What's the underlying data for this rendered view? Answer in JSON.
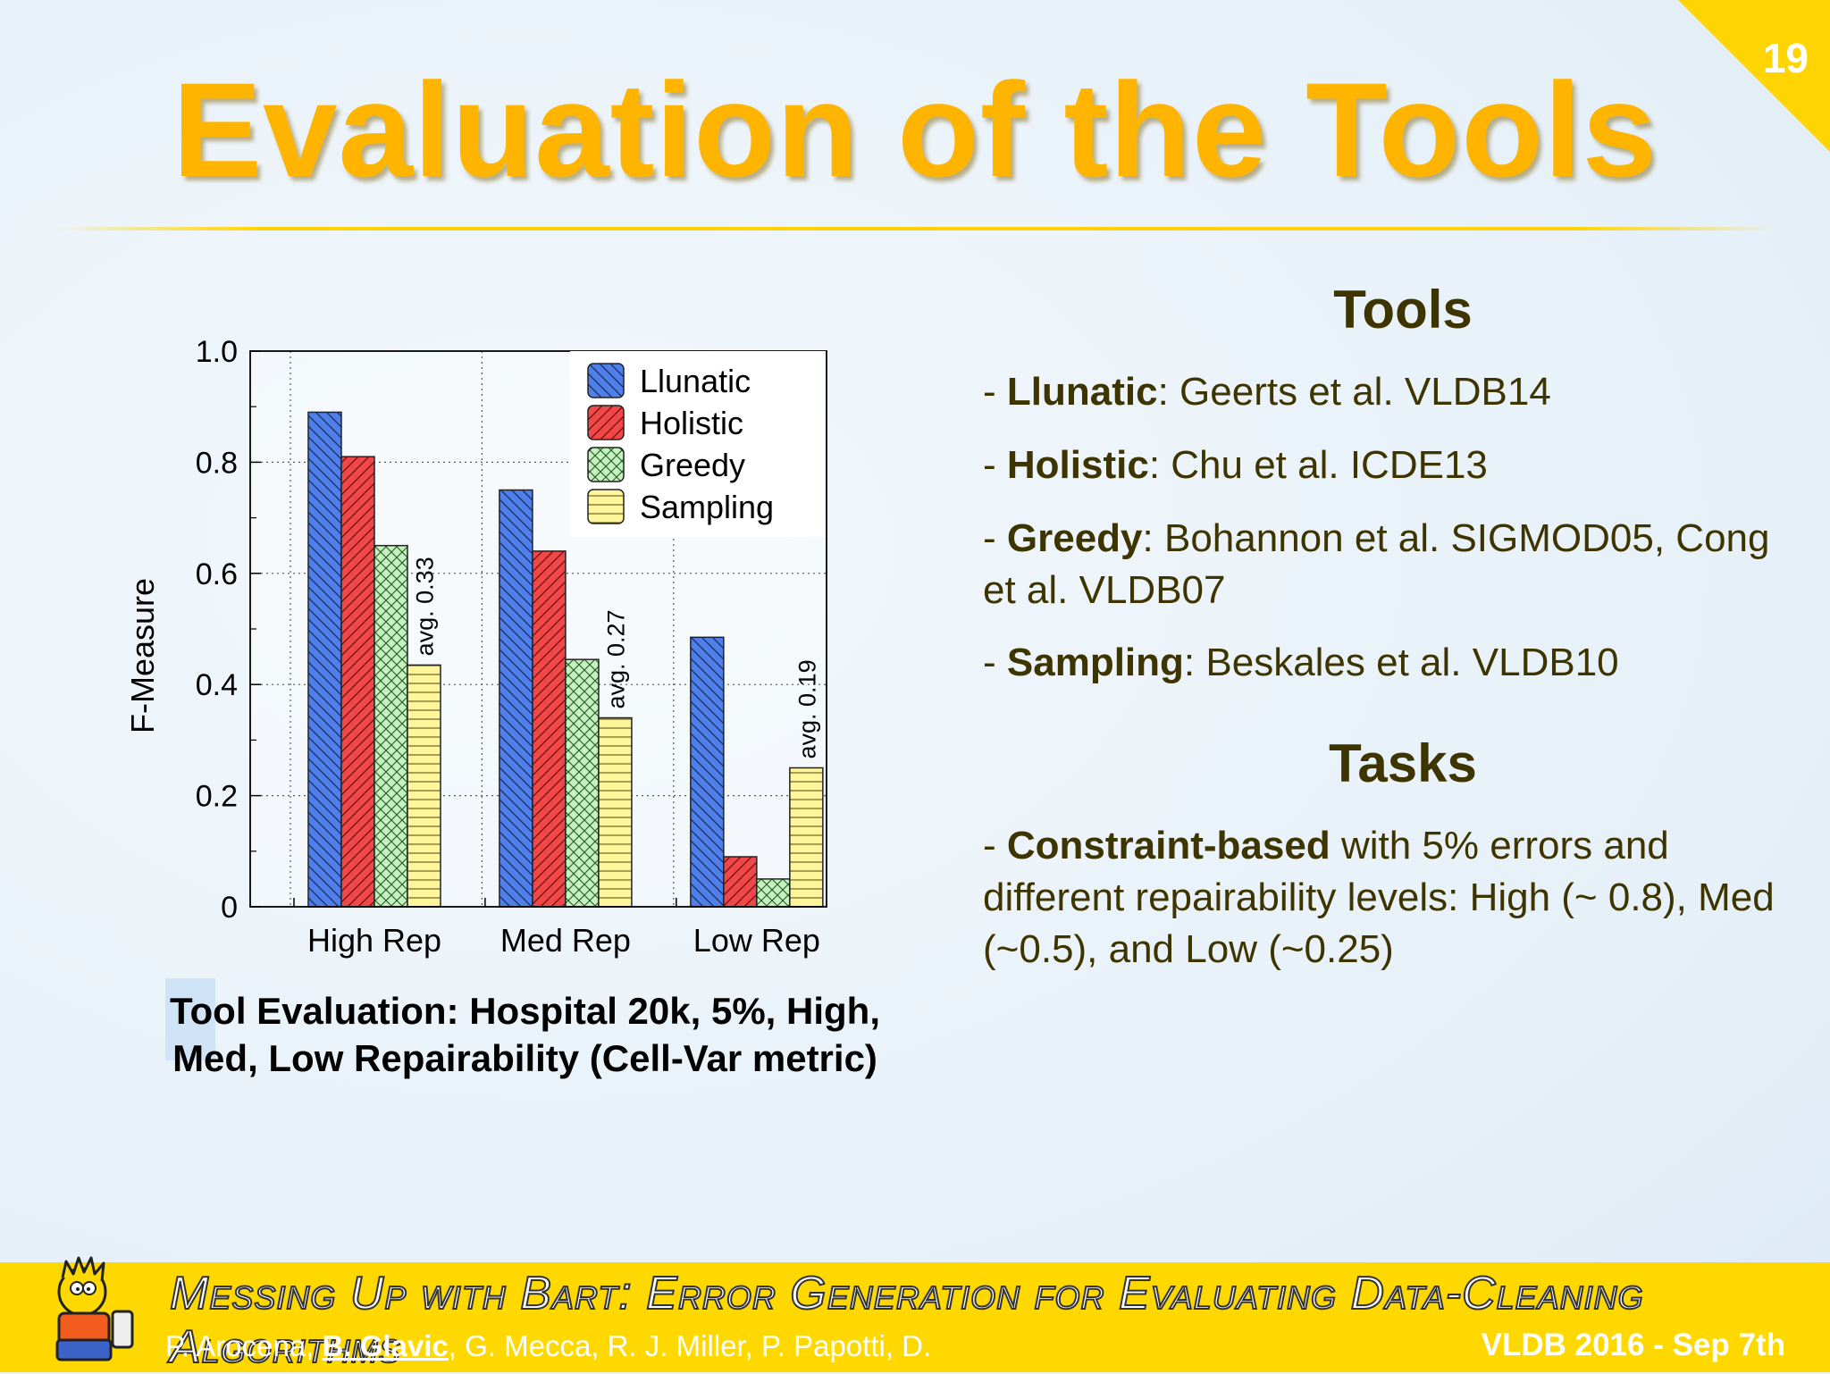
{
  "slide": {
    "number": "19",
    "title": "Evaluation of the Tools"
  },
  "tools": {
    "heading": "Tools",
    "items": [
      {
        "name": "Llunatic",
        "ref": ": Geerts et al. VLDB14"
      },
      {
        "name": "Holistic",
        "ref": ": Chu et al. ICDE13"
      },
      {
        "name": "Greedy",
        "ref": ": Bohannon et al. SIGMOD05, Cong et al. VLDB07"
      },
      {
        "name": "Sampling",
        "ref": ": Beskales et al. VLDB10"
      }
    ]
  },
  "tasks": {
    "heading": "Tasks",
    "bold": "Constraint-based",
    "text": " with 5% errors and different repairability levels: High (~ 0.8), Med (~0.5), and Low (~0.25)"
  },
  "caption": "Tool Evaluation: Hospital 20k, 5%, High, Med, Low Repairability (Cell-Var metric)",
  "footer": {
    "title": "Messing Up with Bart: Error Generation for Evaluating Data-Cleaning Algorithms",
    "authors_pre": "P. Arocena, ",
    "authors_highlight": "B. Glavic",
    "authors_post": ", G. Mecca, R. J. Miller, P. Papotti, D.",
    "conference": "VLDB 2016 - Sep 7th"
  },
  "chart_data": {
    "type": "bar",
    "ylabel": "F-Measure",
    "xlabel": "",
    "ylim": [
      0,
      1.0
    ],
    "yticks": [
      "0",
      "0.2",
      "0.4",
      "0.6",
      "0.8",
      "1.0"
    ],
    "grid": true,
    "legend_position": "top-right",
    "categories": [
      "High Rep",
      "Med Rep",
      "Low Rep"
    ],
    "series": [
      {
        "name": "Llunatic",
        "values": [
          0.89,
          0.75,
          0.485
        ],
        "color": "#4f7fe8",
        "pattern": "back-diagonal"
      },
      {
        "name": "Holistic",
        "values": [
          0.81,
          0.64,
          0.09
        ],
        "color": "#f04848",
        "pattern": "forward-diagonal"
      },
      {
        "name": "Greedy",
        "values": [
          0.65,
          0.445,
          0.05
        ],
        "color": "#c6f0c0",
        "pattern": "crosshatch"
      },
      {
        "name": "Sampling",
        "values": [
          0.435,
          0.34,
          0.25
        ],
        "color": "#fff59a",
        "pattern": "horizontal"
      }
    ],
    "annotations": [
      "avg. 0.33",
      "avg. 0.27",
      "avg. 0.19"
    ]
  }
}
